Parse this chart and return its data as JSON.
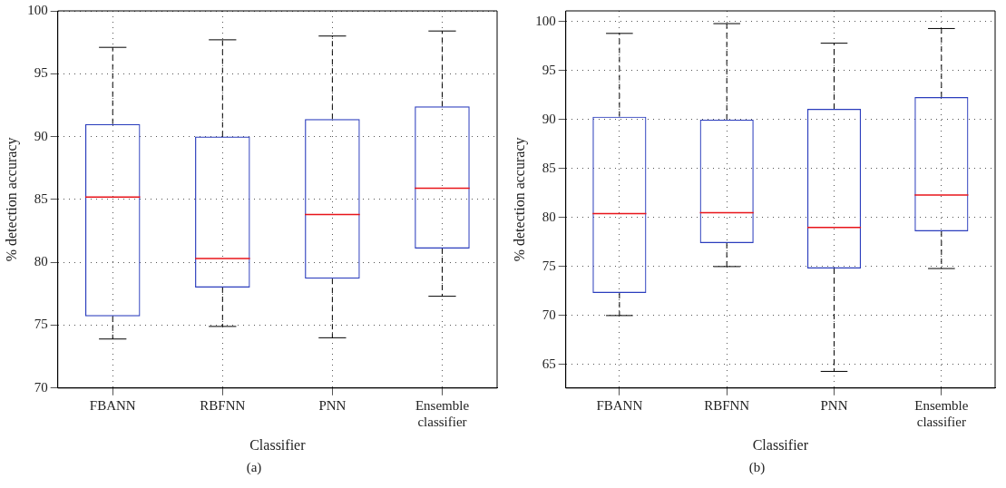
{
  "chart_data": [
    {
      "type": "box",
      "xlabel": "Classifier",
      "ylabel": "% detection accuracy",
      "categories": [
        "FBANN",
        "RBFNN",
        "PNN",
        "Ensemble classifier"
      ],
      "ylim": [
        70,
        100
      ],
      "yticks": [
        70,
        75,
        80,
        85,
        90,
        95,
        100
      ],
      "grid": true,
      "annotations": [
        "(a)"
      ],
      "series": [
        {
          "color": "#2b3dbd",
          "boxes": [
            {
              "low": 73.9,
              "q1": 75.7,
              "median": 85.2,
              "q3": 91.0,
              "high": 97.1
            },
            {
              "low": 74.9,
              "q1": 78.0,
              "median": 80.3,
              "q3": 90.0,
              "high": 97.7
            },
            {
              "low": 74.0,
              "q1": 78.7,
              "median": 83.8,
              "q3": 91.4,
              "high": 98.0
            },
            {
              "low": 77.3,
              "q1": 81.1,
              "median": 85.9,
              "q3": 92.4,
              "high": 98.4
            }
          ]
        }
      ]
    },
    {
      "type": "box",
      "xlabel": "Classifier",
      "ylabel": "% detection accuracy",
      "categories": [
        "FBANN",
        "RBFNN",
        "PNN",
        "Ensemble classifier"
      ],
      "ylim": [
        62.6,
        101.1
      ],
      "yticks": [
        65,
        70,
        75,
        80,
        85,
        90,
        95,
        100
      ],
      "grid": true,
      "annotations": [
        "(b)"
      ],
      "series": [
        {
          "color": "#2b3dbd",
          "boxes": [
            {
              "low": 70.0,
              "q1": 72.3,
              "median": 80.4,
              "q3": 90.3,
              "high": 98.8
            },
            {
              "low": 75.0,
              "q1": 77.4,
              "median": 80.5,
              "q3": 90.0,
              "high": 99.8
            },
            {
              "low": 64.3,
              "q1": 74.8,
              "median": 79.0,
              "q3": 91.1,
              "high": 97.8
            },
            {
              "low": 74.8,
              "q1": 78.6,
              "median": 82.3,
              "q3": 92.3,
              "high": 99.3
            }
          ]
        }
      ]
    }
  ]
}
